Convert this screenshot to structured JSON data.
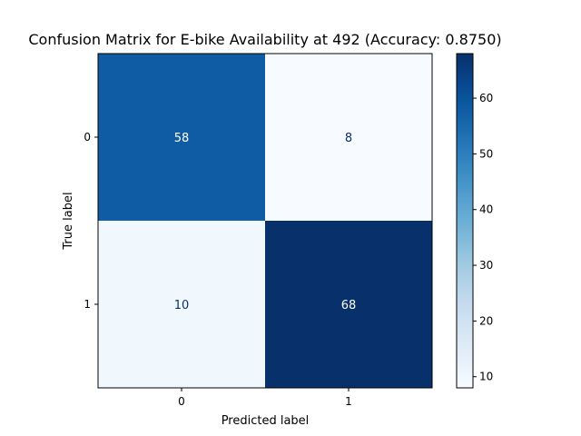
{
  "chart_data": {
    "type": "heatmap",
    "title": "Confusion Matrix for E-bike Availability at 492 (Accuracy: 0.8750)",
    "xlabel": "Predicted label",
    "ylabel": "True label",
    "x_categories": [
      "0",
      "1"
    ],
    "y_categories": [
      "0",
      "1"
    ],
    "values": [
      [
        58,
        8
      ],
      [
        10,
        68
      ]
    ],
    "colormap": "Blues",
    "color_range": [
      8,
      68
    ],
    "colorbar_ticks": [
      10,
      20,
      30,
      40,
      50,
      60
    ],
    "grid": false
  }
}
